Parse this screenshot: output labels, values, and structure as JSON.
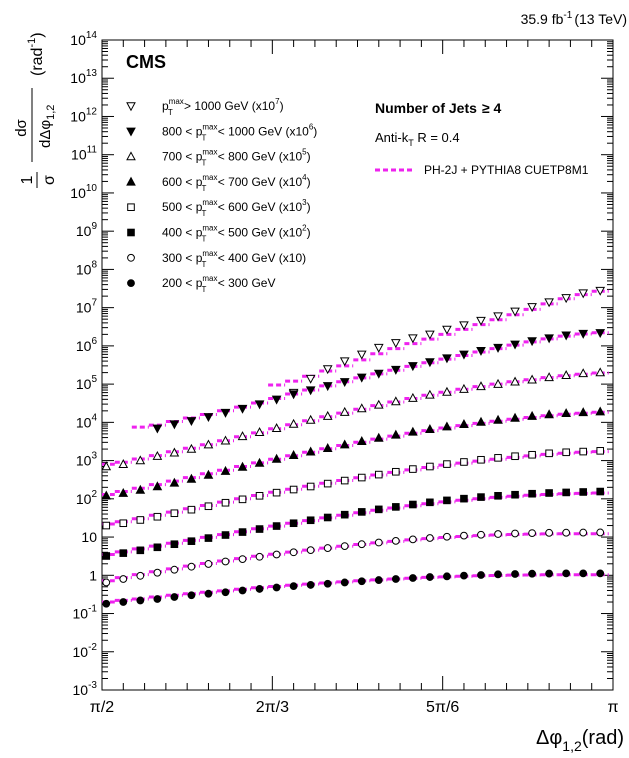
{
  "header": {
    "lumi_value": "35.9 fb",
    "lumi_exp": "-1",
    "lumi_energy": "(13 TeV)"
  },
  "chart_data": {
    "type": "scatter",
    "experiment_label": "CMS",
    "ylabel": {
      "prefix": "1",
      "denominator": "σ",
      "frac_top": "dσ",
      "frac_bottom": "dΔφ",
      "frac_bottom_sub": "1,2",
      "unit": "(rad",
      "unit_exp": "-1",
      "unit_close": ")"
    },
    "xlabel": {
      "main": "Δφ",
      "sub": "1,2",
      "unit": "(rad)"
    },
    "yscale": "log",
    "ylim": [
      0.001,
      100000000000000
    ],
    "xlim": [
      1.5708,
      3.14159
    ],
    "x_ticks": [
      {
        "value": 1.5708,
        "label": "π/2"
      },
      {
        "value": 2.0944,
        "label": "2π/3"
      },
      {
        "value": 2.618,
        "label": "5π/6"
      },
      {
        "value": 3.14159,
        "label": "π"
      }
    ],
    "y_ticks": [
      {
        "exp": -3,
        "base": "10",
        "sup": "-3"
      },
      {
        "exp": -2,
        "base": "10",
        "sup": "-2"
      },
      {
        "exp": -1,
        "base": "10",
        "sup": "-1"
      },
      {
        "exp": 0,
        "base": "1",
        "sup": ""
      },
      {
        "exp": 1,
        "base": "10",
        "sup": ""
      },
      {
        "exp": 2,
        "base": "10",
        "sup": "2"
      },
      {
        "exp": 3,
        "base": "10",
        "sup": "3"
      },
      {
        "exp": 4,
        "base": "10",
        "sup": "4"
      },
      {
        "exp": 5,
        "base": "10",
        "sup": "5"
      },
      {
        "exp": 6,
        "base": "10",
        "sup": "6"
      },
      {
        "exp": 7,
        "base": "10",
        "sup": "7"
      },
      {
        "exp": 8,
        "base": "10",
        "sup": "8"
      },
      {
        "exp": 9,
        "base": "10",
        "sup": "9"
      },
      {
        "exp": 10,
        "base": "10",
        "sup": "10"
      },
      {
        "exp": 11,
        "base": "10",
        "sup": "11"
      },
      {
        "exp": 12,
        "base": "10",
        "sup": "12"
      },
      {
        "exp": 13,
        "base": "10",
        "sup": "13"
      },
      {
        "exp": 14,
        "base": "10",
        "sup": "14"
      }
    ],
    "x": [
      1.5839,
      1.6362,
      1.6886,
      1.741,
      1.7933,
      1.8457,
      1.898,
      1.9504,
      2.0028,
      2.0551,
      2.1075,
      2.1598,
      2.2122,
      2.2646,
      2.3169,
      2.3693,
      2.4216,
      2.474,
      2.5264,
      2.5787,
      2.6311,
      2.6834,
      2.7358,
      2.7882,
      2.8405,
      2.8929,
      2.9452,
      2.9976,
      3.05,
      3.1023
    ],
    "series": [
      {
        "marker": "triangle-down-open",
        "values": [
          null,
          null,
          null,
          null,
          null,
          null,
          null,
          null,
          null,
          null,
          null,
          60000,
          140000,
          250000,
          400000,
          600000,
          900000,
          1200000,
          1600000,
          2000000,
          2700000,
          3500000,
          4600000,
          6000000,
          8000000,
          10500000,
          14000000,
          18000000,
          24000000,
          28000000
        ],
        "mc": [
          null,
          null,
          null,
          null,
          null,
          null,
          null,
          null,
          null,
          null,
          95000,
          120000,
          160000,
          220000,
          300000,
          430000,
          620000,
          850000,
          1150000,
          1500000,
          2000000,
          2700000,
          3600000,
          4800000,
          6500000,
          9000000,
          12500000,
          17000000,
          22000000,
          27000000
        ]
      },
      {
        "marker": "triangle-down-filled",
        "values": [
          null,
          null,
          null,
          7000,
          9000,
          11000,
          14000,
          18000,
          23000,
          30000,
          40000,
          55000,
          70000,
          90000,
          115000,
          150000,
          190000,
          240000,
          300000,
          380000,
          480000,
          600000,
          750000,
          900000,
          1100000,
          1350000,
          1600000,
          1900000,
          2100000,
          2200000
        ],
        "mc": [
          null,
          null,
          7500,
          8500,
          10500,
          13000,
          16000,
          20000,
          25000,
          32000,
          42000,
          55000,
          70000,
          90000,
          115000,
          145000,
          185000,
          230000,
          290000,
          360000,
          450000,
          560000,
          690000,
          850000,
          1050000,
          1270000,
          1520000,
          1800000,
          2050000,
          2200000
        ]
      },
      {
        "marker": "triangle-up-open",
        "values": [
          700,
          800,
          1000,
          1300,
          1600,
          2000,
          2600,
          3300,
          4300,
          5500,
          7000,
          9000,
          11500,
          14500,
          18500,
          23000,
          28500,
          35000,
          43000,
          52000,
          62000,
          74000,
          87000,
          100000,
          115000,
          130000,
          150000,
          170000,
          190000,
          200000
        ],
        "mc": [
          800,
          900,
          1100,
          1350,
          1700,
          2100,
          2600,
          3300,
          4200,
          5300,
          6800,
          8700,
          11000,
          14000,
          17500,
          22000,
          27500,
          34000,
          42000,
          51000,
          61000,
          73000,
          86000,
          100000,
          115000,
          130000,
          148000,
          165000,
          182000,
          195000
        ]
      },
      {
        "marker": "triangle-up-filled",
        "values": [
          120,
          140,
          170,
          210,
          260,
          330,
          420,
          530,
          680,
          860,
          1100,
          1380,
          1700,
          2100,
          2600,
          3200,
          3900,
          4700,
          5600,
          6600,
          7700,
          8900,
          10200,
          11500,
          13000,
          14500,
          16000,
          17200,
          18200,
          19000
        ],
        "mc": [
          130,
          155,
          190,
          235,
          290,
          360,
          450,
          560,
          700,
          870,
          1080,
          1340,
          1650,
          2030,
          2480,
          3020,
          3650,
          4380,
          5200,
          6100,
          7100,
          8200,
          9400,
          10700,
          12000,
          13400,
          14800,
          16200,
          17400,
          18300
        ]
      },
      {
        "marker": "square-open",
        "values": [
          20,
          23,
          28,
          34,
          42,
          52,
          64,
          79,
          97,
          120,
          145,
          175,
          210,
          250,
          300,
          360,
          430,
          510,
          600,
          700,
          810,
          920,
          1050,
          1180,
          1300,
          1420,
          1550,
          1650,
          1720,
          1800
        ],
        "mc": [
          22,
          25,
          30,
          37,
          45,
          55,
          67,
          82,
          100,
          122,
          148,
          178,
          213,
          254,
          302,
          357,
          420,
          490,
          570,
          660,
          760,
          860,
          970,
          1090,
          1210,
          1330,
          1450,
          1560,
          1650,
          1720
        ]
      },
      {
        "marker": "square-filled",
        "values": [
          3.2,
          3.8,
          4.5,
          5.4,
          6.5,
          7.8,
          9.4,
          11.3,
          13.5,
          16.2,
          19.4,
          23,
          27.5,
          32.5,
          38.5,
          45.5,
          53,
          61.5,
          71,
          81,
          91,
          101,
          111,
          120,
          128,
          136,
          142,
          147,
          151,
          155
        ],
        "mc": [
          3.5,
          4.1,
          4.9,
          5.8,
          6.9,
          8.2,
          9.8,
          11.6,
          13.8,
          16.4,
          19.4,
          22.9,
          27,
          31.7,
          37,
          43,
          50,
          57.5,
          65.5,
          74,
          83,
          92,
          101,
          109,
          117,
          124,
          130,
          135,
          139,
          142
        ]
      },
      {
        "marker": "circle-open",
        "values": [
          0.65,
          0.8,
          0.97,
          1.17,
          1.4,
          1.68,
          1.98,
          2.3,
          2.65,
          3.05,
          3.5,
          4,
          4.55,
          5.15,
          5.8,
          6.5,
          7.2,
          7.95,
          8.7,
          9.45,
          10.2,
          10.9,
          11.5,
          12,
          12.4,
          12.7,
          12.9,
          13,
          13.1,
          13.2
        ],
        "mc": [
          0.72,
          0.87,
          1.04,
          1.24,
          1.47,
          1.74,
          2.04,
          2.37,
          2.73,
          3.13,
          3.57,
          4.05,
          4.57,
          5.13,
          5.73,
          6.37,
          7.03,
          7.72,
          8.42,
          9.1,
          9.76,
          10.36,
          10.9,
          11.35,
          11.7,
          11.95,
          12.1,
          12.18,
          12.2,
          12.2
        ]
      },
      {
        "marker": "circle-filled",
        "values": [
          0.18,
          0.2,
          0.22,
          0.24,
          0.27,
          0.3,
          0.33,
          0.36,
          0.4,
          0.44,
          0.48,
          0.52,
          0.56,
          0.6,
          0.65,
          0.7,
          0.75,
          0.8,
          0.85,
          0.9,
          0.94,
          0.98,
          1.02,
          1.06,
          1.08,
          1.1,
          1.11,
          1.12,
          1.12,
          1.12
        ],
        "mc": [
          0.2,
          0.22,
          0.24,
          0.27,
          0.3,
          0.33,
          0.36,
          0.39,
          0.43,
          0.47,
          0.51,
          0.55,
          0.59,
          0.63,
          0.67,
          0.72,
          0.76,
          0.8,
          0.84,
          0.88,
          0.91,
          0.94,
          0.97,
          0.99,
          1.01,
          1.02,
          1.03,
          1.03,
          1.03,
          1.03
        ]
      }
    ],
    "legend": {
      "placement": "top-left",
      "entries": [
        {
          "marker": "triangle-down-open",
          "pre": "",
          "post": " > 1000 GeV (x10",
          "exp": "7",
          "close": ")"
        },
        {
          "marker": "triangle-down-filled",
          "pre": "800 < ",
          "post": " < 1000 GeV (x10",
          "exp": "6",
          "close": ")"
        },
        {
          "marker": "triangle-up-open",
          "pre": "700 < ",
          "post": " < 800 GeV (x10",
          "exp": "5",
          "close": ")"
        },
        {
          "marker": "triangle-up-filled",
          "pre": "600 < ",
          "post": " < 700 GeV (x10",
          "exp": "4",
          "close": ")"
        },
        {
          "marker": "square-open",
          "pre": "500 < ",
          "post": " < 600 GeV (x10",
          "exp": "3",
          "close": ")"
        },
        {
          "marker": "square-filled",
          "pre": "400 < ",
          "post": " < 500 GeV (x10",
          "exp": "2",
          "close": ")"
        },
        {
          "marker": "circle-open",
          "pre": "300 < ",
          "post": " < 400 GeV (x10)",
          "exp": "",
          "close": ""
        },
        {
          "marker": "circle-filled",
          "pre": "200 < ",
          "post": " < 300 GeV",
          "exp": "",
          "close": ""
        }
      ],
      "pt_symbol": "p",
      "pt_sub": "T",
      "pt_sup": "max"
    },
    "annotations": {
      "jets_label": "Number of Jets",
      "jets_cut": "≥ 4",
      "algo_pre": "Anti-k",
      "algo_sub": "T",
      "algo_post": " R = 0.4",
      "mc_label": "PH-2J + PYTHIA8 CUETP8M1"
    },
    "colors": {
      "mc": "#ee22ee",
      "data": "#000000"
    }
  }
}
